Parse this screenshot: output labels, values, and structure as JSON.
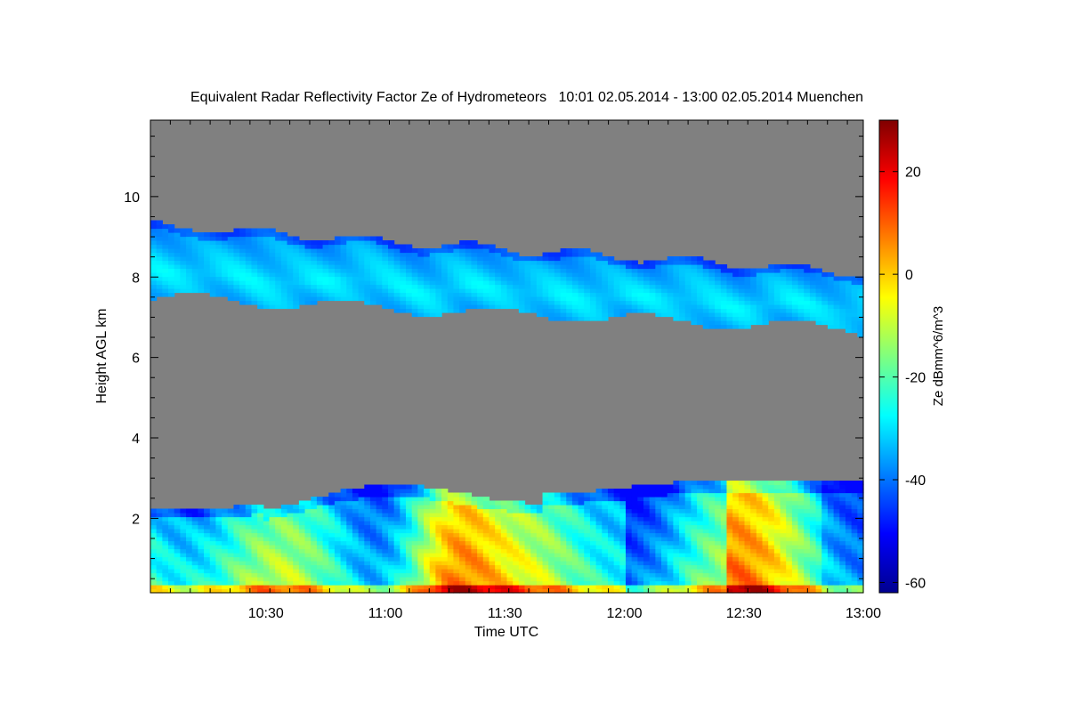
{
  "chart_data": {
    "type": "heatmap",
    "title": "Equivalent Radar Reflectivity Factor Ze of Hydrometeors   10:01 02.05.2014 - 13:00 02.05.2014 Muenchen",
    "xlabel": "Time UTC",
    "ylabel": "Height AGL km",
    "colorbar_label": "Ze dBmm^6/m^3",
    "x_range_minutes_utc": [
      601,
      780
    ],
    "x_ticks": [
      {
        "label": "10:30",
        "minutes": 630
      },
      {
        "label": "11:00",
        "minutes": 660
      },
      {
        "label": "11:30",
        "minutes": 690
      },
      {
        "label": "12:00",
        "minutes": 720
      },
      {
        "label": "12:30",
        "minutes": 750
      },
      {
        "label": "13:00",
        "minutes": 780
      }
    ],
    "ylim": [
      0.15,
      11.9
    ],
    "y_ticks": [
      2,
      4,
      6,
      8,
      10
    ],
    "clim": [
      -62,
      30
    ],
    "colorbar_ticks": [
      20,
      0,
      -20,
      -40,
      -60
    ],
    "no_data_color": "#808080",
    "colormap": [
      "#00008f",
      "#0000ff",
      "#007fff",
      "#00ffff",
      "#7fff7f",
      "#ffff00",
      "#ff7f00",
      "#ff0000",
      "#7f0000"
    ],
    "features": {
      "upper_cloud_layer": {
        "base_km": [
          7.5,
          6.7
        ],
        "top_km": [
          9.3,
          8.1
        ],
        "ze_dbz_range": [
          -45,
          -30
        ]
      },
      "lower_precip_layer": {
        "top_km": [
          2.3,
          3.0
        ],
        "ze_dbz_range": [
          -40,
          25
        ],
        "max_core_time_minutes": 675
      }
    }
  }
}
